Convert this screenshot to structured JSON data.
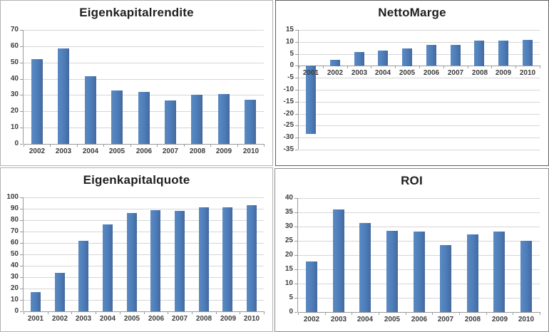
{
  "page": {
    "background": "#ffffff",
    "description": "Four Excel-style bar charts arranged in a 2x2 grid"
  },
  "colors": {
    "bar": "#4d7dba",
    "bar_light": "#5b8ac1",
    "bar_dark": "#44699c",
    "gridline": "#d6d6d6",
    "axis": "#9a9a9a",
    "tick_text": "#3c3c3c",
    "title_text": "#1f1f1f"
  },
  "chart_data": [
    {
      "type": "bar",
      "title": "Eigenkapitalrendite",
      "categories": [
        "2002",
        "2003",
        "2004",
        "2005",
        "2006",
        "2007",
        "2008",
        "2009",
        "2010"
      ],
      "values": [
        52,
        58.5,
        41.5,
        33,
        32,
        26.5,
        30,
        30.5,
        27
      ],
      "ylim": [
        0,
        70
      ],
      "ytick_step": 10,
      "grid": true,
      "legend": "none"
    },
    {
      "type": "bar",
      "title": "NettoMarge",
      "categories": [
        "2001",
        "2002",
        "2003",
        "2004",
        "2005",
        "2006",
        "2007",
        "2008",
        "2009",
        "2010"
      ],
      "values": [
        -28.5,
        2.6,
        5.8,
        6.3,
        7.4,
        8.7,
        8.7,
        10.6,
        10.4,
        10.8
      ],
      "ylim": [
        -35,
        15
      ],
      "ytick_step": 5,
      "grid": true,
      "legend": "none"
    },
    {
      "type": "bar",
      "title": "Eigenkapitalquote",
      "categories": [
        "2001",
        "2002",
        "2003",
        "2004",
        "2005",
        "2006",
        "2007",
        "2008",
        "2009",
        "2010"
      ],
      "values": [
        17,
        34,
        62,
        76,
        86,
        88.5,
        88,
        91.5,
        91.5,
        93
      ],
      "ylim": [
        0,
        100
      ],
      "ytick_step": 10,
      "grid": true,
      "legend": "none"
    },
    {
      "type": "bar",
      "title": "ROI",
      "categories": [
        "2002",
        "2003",
        "2004",
        "2005",
        "2006",
        "2007",
        "2008",
        "2009",
        "2010"
      ],
      "values": [
        17.7,
        36,
        31.3,
        28.5,
        28.3,
        23.5,
        27.3,
        28.2,
        25
      ],
      "ylim": [
        0,
        40
      ],
      "ytick_step": 5,
      "grid": true,
      "legend": "none"
    }
  ]
}
